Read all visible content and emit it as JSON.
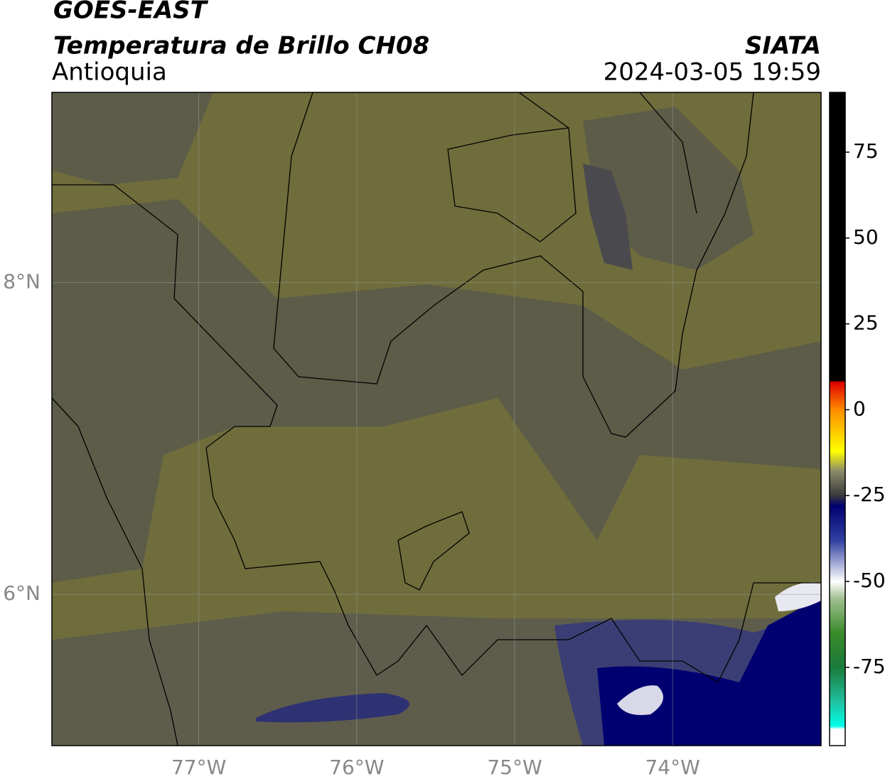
{
  "header": {
    "title": "GOES-EAST",
    "subtitle": "Temperatura de Brillo CH08",
    "region": "Antioquia",
    "source": "SIATA",
    "datetime": "2024-03-05 19:59"
  },
  "map": {
    "xlim": [
      -77.93,
      -73.06
    ],
    "ylim": [
      5.03,
      9.22
    ],
    "xticks": [
      {
        "value": -77,
        "label": "77°W"
      },
      {
        "value": -76,
        "label": "76°W"
      },
      {
        "value": -75,
        "label": "75°W"
      },
      {
        "value": -74,
        "label": "74°W"
      }
    ],
    "yticks": [
      {
        "value": 8,
        "label": "8°N"
      },
      {
        "value": 6,
        "label": "6°N"
      }
    ],
    "grid": true
  },
  "colorbar": {
    "lim": [
      -97.8,
      92.4
    ],
    "ticks": [
      75,
      50,
      25,
      0,
      -25,
      -50,
      -75
    ]
  }
}
